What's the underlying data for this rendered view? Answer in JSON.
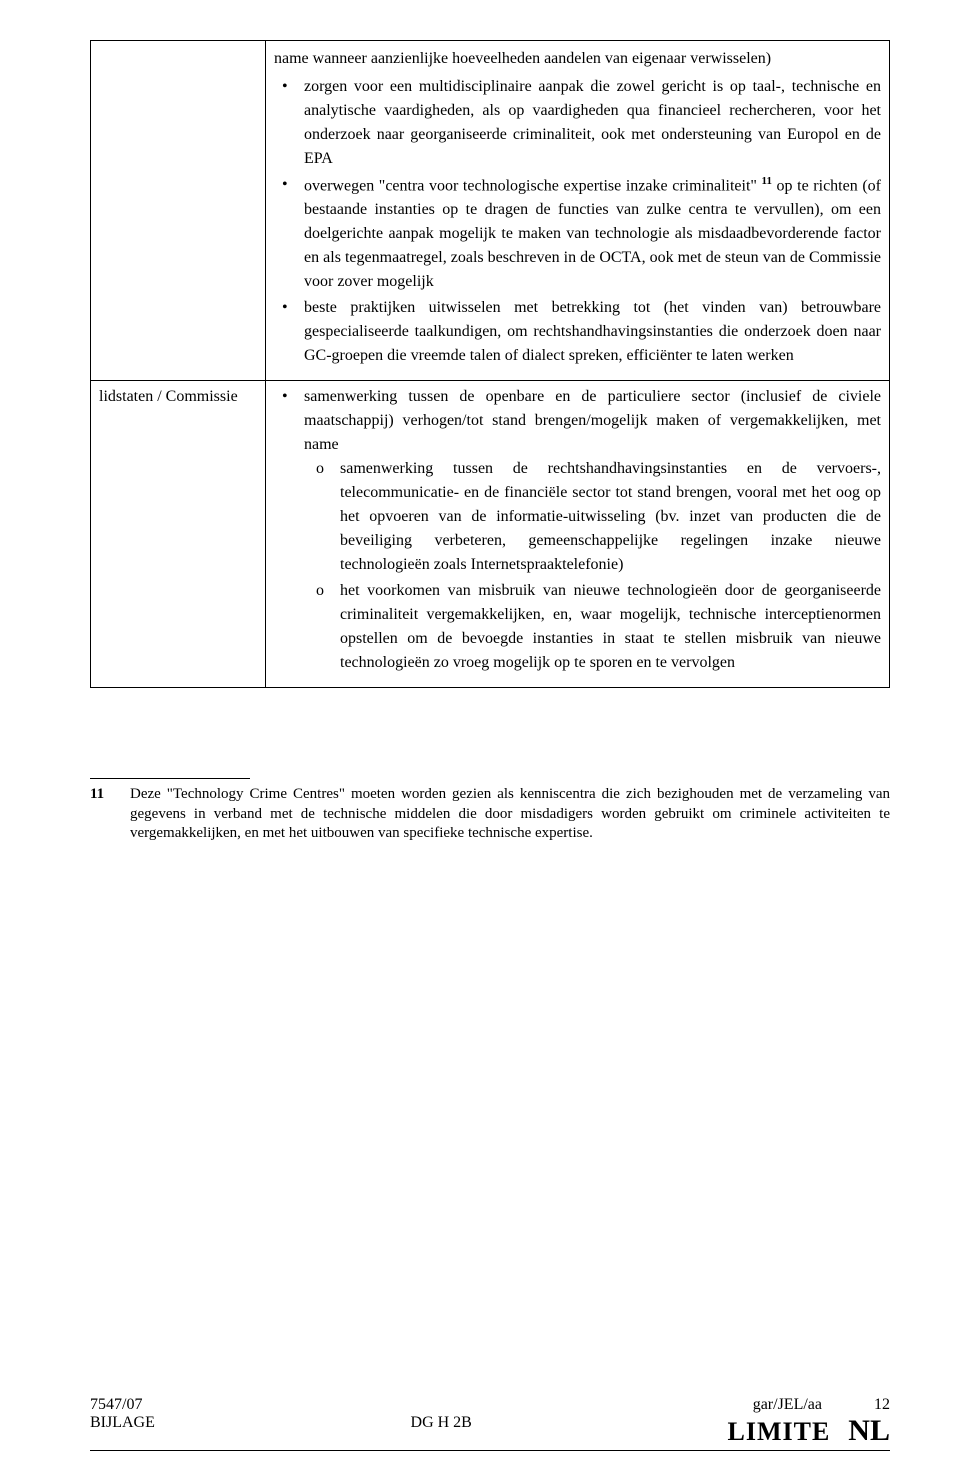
{
  "row1": {
    "left": "",
    "intro1": "name wanneer aanzienlijke hoeveelheden aandelen van eigenaar verwisselen)",
    "b1_a": "zorgen voor een multidisciplinaire aanpak die zowel gericht is op taal-, technische en analytische vaardigheden, als op vaardigheden qua financieel rechercheren, voor het onderzoek naar georganiseerde criminaliteit, ook met ondersteuning van Europol en de EPA",
    "b2_a": "overwegen \"centra voor technologische expertise inzake criminaliteit\" ",
    "b2_sup": "11",
    "b2_b": " op te richten (of bestaande instanties op te dragen de functies van zulke centra te vervullen), om een doelgerichte aanpak mogelijk te maken van technologie als misdaadbevorderende factor en als tegenmaatregel, zoals beschreven in de OCTA, ook met de steun van de Commissie voor zover mogelijk",
    "b3_a": "beste praktijken uitwisselen met betrekking tot (het vinden van) betrouwbare gespecialiseerde taalkundigen, om rechtshandhavings­instanties die onderzoek doen naar GC-groepen die vreemde talen of dialect spreken, efficiënter te laten werken"
  },
  "row2": {
    "left": "lidstaten / Commissie",
    "b1_a": "samenwerking tussen de openbare en de particuliere sector (inclusief de civiele maatschappij) verhogen/tot stand brengen/mogelijk maken of vergemakkelijken, met name",
    "c1": "samenwerking tussen de rechtshandhavingsinstanties en de vervoers-, telecommunicatie- en de financiële sector tot stand brengen, vooral met het oog op het opvoeren van de informatie-uitwisseling (bv. inzet van producten die de beveiliging verbeteren, gemeenschappelijke regelingen inzake nieuwe technologieën zoals Internetspraaktelefonie)",
    "c2": "het voorkomen van misbruik van nieuwe technologieën door de georganiseerde criminaliteit vergemakkelijken, en, waar mogelijk, technische interceptienormen opstellen om de bevoegde instanties in staat te stellen misbruik van nieuwe technologieën zo vroeg mogelijk op te sporen en te vervolgen"
  },
  "footnote": {
    "num": "11",
    "text": "Deze \"Technology Crime Centres\" moeten worden gezien als kenniscentra die zich bezig­houden met de verzameling van gegevens in verband met de technische middelen die door misdadigers worden gebruikt om criminele activiteiten te vergemakkelijken, en met het uitbouwen van specifieke technische expertise."
  },
  "footer": {
    "docnum": "7547/07",
    "annex": "BIJLAGE",
    "dg": "DG H 2B",
    "ref": "gar/JEL/aa",
    "page": "12",
    "limite": "LIMITE",
    "nl": "NL"
  }
}
